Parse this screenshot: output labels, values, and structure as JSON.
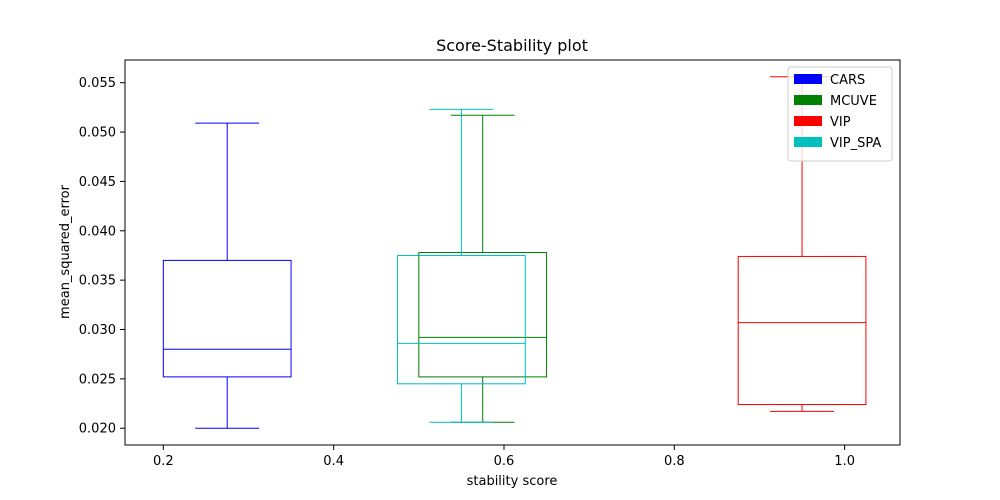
{
  "chart_data": {
    "type": "boxplot",
    "title": "Score-Stability plot",
    "xlabel": "stability score",
    "ylabel": "mean_squared_error",
    "xlim": [
      0.155,
      1.065
    ],
    "ylim": [
      0.0183,
      0.0573
    ],
    "xticks": [
      0.2,
      0.4,
      0.6,
      0.8,
      1.0
    ],
    "xtick_labels": [
      "0.2",
      "0.4",
      "0.6",
      "0.8",
      "1.0"
    ],
    "yticks": [
      0.02,
      0.025,
      0.03,
      0.035,
      0.04,
      0.045,
      0.05,
      0.055
    ],
    "ytick_labels": [
      "0.020",
      "0.025",
      "0.030",
      "0.035",
      "0.040",
      "0.045",
      "0.050",
      "0.055"
    ],
    "legend_position": "top-right",
    "grid": false,
    "series": [
      {
        "name": "CARS",
        "color": "#0000ff",
        "x_left": 0.2,
        "x_right": 0.35,
        "whisker_low": 0.02,
        "q1": 0.0252,
        "median": 0.028,
        "q3": 0.037,
        "whisker_high": 0.0509
      },
      {
        "name": "MCUVE",
        "color": "#008000",
        "x_left": 0.5,
        "x_right": 0.65,
        "whisker_low": 0.0206,
        "q1": 0.0252,
        "median": 0.0292,
        "q3": 0.0378,
        "whisker_high": 0.0517
      },
      {
        "name": "VIP",
        "color": "#ff0000",
        "x_left": 0.875,
        "x_right": 1.025,
        "whisker_low": 0.0217,
        "q1": 0.0224,
        "median": 0.0307,
        "q3": 0.0374,
        "whisker_high": 0.0556
      },
      {
        "name": "VIP_SPA",
        "color": "#00bfbf",
        "x_left": 0.475,
        "x_right": 0.625,
        "whisker_low": 0.0206,
        "q1": 0.0245,
        "median": 0.0286,
        "q3": 0.0375,
        "whisker_high": 0.0523
      }
    ]
  }
}
